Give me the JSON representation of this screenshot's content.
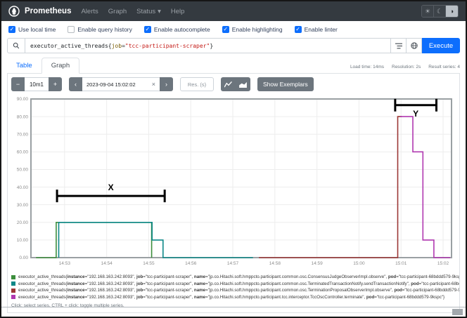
{
  "navbar": {
    "brand": "Prometheus",
    "items": [
      {
        "label": "Alerts"
      },
      {
        "label": "Graph"
      },
      {
        "label": "Status"
      },
      {
        "label": "Help"
      }
    ]
  },
  "icons": {
    "caret": "▾",
    "clear": "×",
    "prev": "‹",
    "next": "›",
    "minus": "−",
    "plus": "+",
    "sun": "☀",
    "moon": "☾",
    "auto": "◑",
    "check": "✓"
  },
  "options": [
    {
      "label": "Use local time",
      "checked": true
    },
    {
      "label": "Enable query history",
      "checked": false
    },
    {
      "label": "Enable autocomplete",
      "checked": true
    },
    {
      "label": "Enable highlighting",
      "checked": true
    },
    {
      "label": "Enable linter",
      "checked": true
    }
  ],
  "query": {
    "metric": "executor_active_threads",
    "brace_open": "{",
    "label_name": "job",
    "equals": "=",
    "label_value": "\"tcc-participant-scraper\"",
    "brace_close": "}",
    "execute_label": "Execute"
  },
  "stats": {
    "load_time": "Load time: 14ms",
    "resolution": "Resolution: 2s",
    "result_series": "Result series: 4"
  },
  "tabs": [
    {
      "label": "Table",
      "active": false
    },
    {
      "label": "Graph",
      "active": true
    }
  ],
  "controls": {
    "range_value": "10m1",
    "datetime_value": "2023-09-04 15:02:02",
    "res_placeholder": "Res. (s)",
    "show_exemplars_label": "Show Exemplars"
  },
  "chart_data": {
    "type": "line",
    "title": "",
    "xlabel": "",
    "ylabel": "",
    "x_axis_note": "x values are minutes after 14:52.2 on 2023-09-04",
    "xlim": [
      0,
      10
    ],
    "ylim": [
      0,
      90
    ],
    "grid": true,
    "legend_position": "bottom",
    "xticks": [
      {
        "pos": 0.8,
        "label": "14:53"
      },
      {
        "pos": 1.8,
        "label": "14:54"
      },
      {
        "pos": 2.8,
        "label": "14:55"
      },
      {
        "pos": 3.8,
        "label": "14:56"
      },
      {
        "pos": 4.8,
        "label": "14:57"
      },
      {
        "pos": 5.8,
        "label": "14:58"
      },
      {
        "pos": 6.8,
        "label": "14:59"
      },
      {
        "pos": 7.8,
        "label": "15:00"
      },
      {
        "pos": 8.8,
        "label": "15:01"
      },
      {
        "pos": 9.8,
        "label": "15:02"
      }
    ],
    "yticks": [
      {
        "pos": 0,
        "label": "0.00"
      },
      {
        "pos": 10,
        "label": "10.00"
      },
      {
        "pos": 20,
        "label": "20.00"
      },
      {
        "pos": 30,
        "label": "30.00"
      },
      {
        "pos": 40,
        "label": "40.00"
      },
      {
        "pos": 50,
        "label": "50.00"
      },
      {
        "pos": 60,
        "label": "60.00"
      },
      {
        "pos": 70,
        "label": "70.00"
      },
      {
        "pos": 80,
        "label": "80.00"
      },
      {
        "pos": 90,
        "label": "90.00"
      }
    ],
    "series": [
      {
        "color": "#3d8e3d",
        "peak_value": 20,
        "points": [
          [
            0.12,
            0
          ],
          [
            0.6,
            0
          ],
          [
            0.6,
            20
          ],
          [
            2.87,
            20
          ],
          [
            2.87,
            0
          ]
        ],
        "legend": {
          "metric": "executor_active_threads",
          "labels": [
            {
              "k": "instance",
              "v": "192.168.163.242:8093"
            },
            {
              "k": "job",
              "v": "tcc-participant-scraper"
            },
            {
              "k": "name",
              "v": "jp.co.Hitachi.soft.hmppcto.participant.common.osc.ConsensusJudgeObserverImpl.observe"
            },
            {
              "k": "pod",
              "v": "tcc-participant-68bddd579-9kspc"
            }
          ]
        }
      },
      {
        "color": "#0e8888",
        "peak_value": 20,
        "points": [
          [
            0.66,
            0
          ],
          [
            0.66,
            20
          ],
          [
            2.88,
            20
          ],
          [
            2.88,
            10
          ],
          [
            3.14,
            10
          ],
          [
            3.14,
            0
          ],
          [
            5.28,
            0
          ]
        ],
        "legend": {
          "metric": "executor_active_threads",
          "labels": [
            {
              "k": "instance",
              "v": "192.168.163.242:8093"
            },
            {
              "k": "job",
              "v": "tcc-participant-scraper"
            },
            {
              "k": "name",
              "v": "jp.co.Hitachi.soft.hmppcto.participant.common.osc.TerminatedTransactionNotify.sendTransactionNotify"
            },
            {
              "k": "pod",
              "v": "tcc-participant-68bddd579-9kspc"
            }
          ]
        }
      },
      {
        "color": "#9c3736",
        "peak_value": 80,
        "points": [
          [
            5.42,
            0
          ],
          [
            8.72,
            0
          ],
          [
            8.72,
            80
          ],
          [
            8.82,
            80
          ]
        ],
        "legend": {
          "metric": "executor_active_threads",
          "labels": [
            {
              "k": "instance",
              "v": "192.168.163.242:8093"
            },
            {
              "k": "job",
              "v": "tcc-participant-scraper"
            },
            {
              "k": "name",
              "v": "jp.co.Hitachi.soft.hmppcto.participant.common.osc.TerminationProposalObserverImpl.observe"
            },
            {
              "k": "pod",
              "v": "tcc-participant-68bddd579-9kspc"
            }
          ]
        }
      },
      {
        "color": "#b039b0",
        "peak_value": 80,
        "points": [
          [
            8.78,
            80
          ],
          [
            9.08,
            80
          ],
          [
            9.08,
            60
          ],
          [
            9.32,
            60
          ],
          [
            9.32,
            10
          ],
          [
            9.58,
            10
          ],
          [
            9.58,
            0
          ],
          [
            9.97,
            0
          ]
        ],
        "legend": {
          "metric": "executor_active_threads",
          "labels": [
            {
              "k": "instance",
              "v": "192.168.163.242:8093"
            },
            {
              "k": "job",
              "v": "tcc-participant-scraper"
            },
            {
              "k": "name",
              "v": "jp.co.Hitachi.soft.hmppcto.participant.tcc.interceptor.TccOscController.terminate"
            },
            {
              "k": "pod",
              "v": "tcc-participant-68bddd579-9kspc"
            }
          ]
        }
      }
    ],
    "annotations": [
      {
        "label": "X",
        "x1": 0.62,
        "x2": 3.18,
        "y": 35,
        "label_side": "above"
      },
      {
        "label": "Y",
        "x1": 8.66,
        "x2": 9.64,
        "y": 86.5,
        "label_side": "below"
      }
    ]
  },
  "legend_note": "Click: select series, CTRL + click: toggle multiple series."
}
